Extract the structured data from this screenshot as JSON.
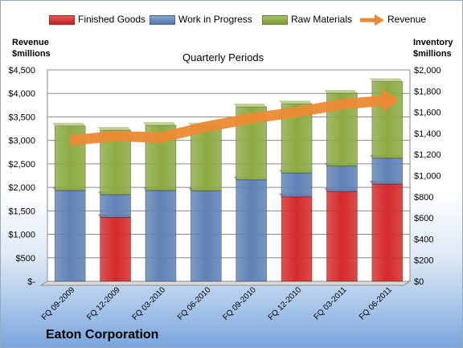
{
  "company": "Eaton Corporation",
  "chart_data": {
    "type": "bar",
    "subtitle": "Quarterly Periods",
    "left_axis_title": [
      "Revenue",
      "$millions"
    ],
    "right_axis_title": [
      "Inventory",
      "$millions"
    ],
    "categories": [
      "FQ 09-2009",
      "FQ 12-2009",
      "FQ 03-2010",
      "FQ 06-2010",
      "FQ 09-2010",
      "FQ 12-2010",
      "FQ 03-2011",
      "FQ 06-2011"
    ],
    "left_ticks": [
      "$-",
      "$500",
      "$1,000",
      "$1,500",
      "$2,000",
      "$2,500",
      "$3,000",
      "$3,500",
      "$4,000",
      "$4,500"
    ],
    "right_ticks": [
      "$0",
      "$200",
      "$400",
      "$600",
      "$800",
      "$1,000",
      "$1,200",
      "$1,400",
      "$1,600",
      "$1,800",
      "$2,000"
    ],
    "left_ylim": [
      0,
      4500
    ],
    "right_ylim": [
      0,
      2000
    ],
    "stacked": true,
    "grid": true,
    "legend_position": "top",
    "series": [
      {
        "name": "Finished Goods",
        "axis": "right",
        "color": "#d42a2a",
        "values": [
          0,
          605,
          0,
          0,
          0,
          800,
          850,
          920
        ]
      },
      {
        "name": "Work in Progress",
        "axis": "right",
        "color": "#5f81b5",
        "values": [
          860,
          215,
          860,
          855,
          960,
          225,
          240,
          245
        ]
      },
      {
        "name": "Raw Materials",
        "axis": "right",
        "color": "#8caa42",
        "values": [
          610,
          610,
          615,
          615,
          690,
          655,
          690,
          725
        ]
      },
      {
        "name": "Revenue",
        "type": "line",
        "axis": "left",
        "color": "#ec8a34",
        "values": [
          3000,
          3090,
          3060,
          3290,
          3470,
          3600,
          3770,
          3850
        ]
      }
    ]
  }
}
